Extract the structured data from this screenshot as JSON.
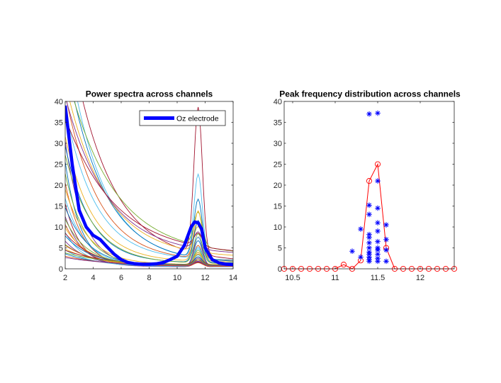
{
  "chart_data": [
    {
      "type": "line",
      "title": "Power spectra across channels",
      "xlabel": "",
      "ylabel": "",
      "xlim": [
        2,
        14
      ],
      "ylim": [
        0,
        40
      ],
      "xticks": [
        2,
        4,
        6,
        8,
        10,
        12,
        14
      ],
      "yticks": [
        0,
        5,
        10,
        15,
        20,
        25,
        30,
        35,
        40
      ],
      "legend": {
        "position": "top-right",
        "entries": [
          "Oz electrode"
        ]
      },
      "grid": false,
      "highlight_series": {
        "name": "Oz electrode",
        "color": "#0000ff",
        "x": [
          2,
          2.5,
          3,
          3.5,
          4,
          4.5,
          5,
          5.5,
          6,
          6.5,
          7,
          7.5,
          8,
          8.5,
          9,
          9.5,
          10,
          10.5,
          11,
          11.25,
          11.5,
          11.75,
          12,
          12.5,
          13,
          13.5,
          14
        ],
        "y": [
          39,
          25,
          14,
          10,
          8,
          7,
          5.2,
          3.5,
          2.2,
          1.5,
          1.2,
          1.1,
          1.1,
          1.2,
          1.5,
          2.2,
          3,
          5.5,
          10,
          11.2,
          11,
          9.5,
          5,
          2.2,
          1.4,
          1.1,
          1
        ]
      },
      "background_series": [
        {
          "color": "#7e2f8e",
          "a": 30,
          "k": 0.75,
          "base": 0.5,
          "pk": 1.2
        },
        {
          "color": "#0072bd",
          "a": 25,
          "k": 0.9,
          "base": 0.6,
          "pk": 1.0
        },
        {
          "color": "#77ac30",
          "a": 22,
          "k": 0.7,
          "base": 0.8,
          "pk": 2.0
        },
        {
          "color": "#d95319",
          "a": 20,
          "k": 0.8,
          "base": 0.5,
          "pk": 3.0
        },
        {
          "color": "#edb120",
          "a": 18,
          "k": 0.6,
          "base": 1.0,
          "pk": 2.5
        },
        {
          "color": "#4dbeee",
          "a": 16,
          "k": 0.7,
          "base": 0.8,
          "pk": 4.0
        },
        {
          "color": "#a2142f",
          "a": 15,
          "k": 0.9,
          "base": 0.6,
          "pk": 1.5
        },
        {
          "color": "#0072bd",
          "a": 14,
          "k": 0.6,
          "base": 0.7,
          "pk": 6.0
        },
        {
          "color": "#7e2f8e",
          "a": 12,
          "k": 0.8,
          "base": 0.5,
          "pk": 2.0
        },
        {
          "color": "#77ac30",
          "a": 11,
          "k": 0.65,
          "base": 0.9,
          "pk": 3.5
        },
        {
          "color": "#d95319",
          "a": 10,
          "k": 0.7,
          "base": 0.6,
          "pk": 5.0
        },
        {
          "color": "#edb120",
          "a": 9,
          "k": 0.6,
          "base": 0.8,
          "pk": 2.5
        },
        {
          "color": "#4dbeee",
          "a": 8,
          "k": 0.75,
          "base": 0.7,
          "pk": 4.5
        },
        {
          "color": "#a2142f",
          "a": 8,
          "k": 0.5,
          "base": 0.5,
          "pk": 1.0
        },
        {
          "color": "#0072bd",
          "a": 7,
          "k": 0.55,
          "base": 0.9,
          "pk": 3.0
        },
        {
          "color": "#7e2f8e",
          "a": 6,
          "k": 0.6,
          "base": 0.6,
          "pk": 7.0
        },
        {
          "color": "#77ac30",
          "a": 5,
          "k": 0.5,
          "base": 0.8,
          "pk": 2.0
        },
        {
          "color": "#d95319",
          "a": 5,
          "k": 0.45,
          "base": 0.6,
          "pk": 1.5
        },
        {
          "color": "#edb120",
          "a": 4,
          "k": 0.4,
          "base": 0.7,
          "pk": 3.2
        },
        {
          "color": "#4dbeee",
          "a": 4,
          "k": 0.5,
          "base": 0.5,
          "pk": 2.8
        },
        {
          "color": "#a2142f",
          "a": 3.5,
          "k": 0.35,
          "base": 0.9,
          "pk": 1.8
        },
        {
          "color": "#0072bd",
          "a": 3,
          "k": 0.4,
          "base": 0.6,
          "pk": 2.2
        },
        {
          "color": "#77ac30",
          "a": 3,
          "k": 0.3,
          "base": 0.8,
          "pk": 1.2
        },
        {
          "color": "#d95319",
          "a": 2.5,
          "k": 0.3,
          "base": 0.5,
          "pk": 0.8
        },
        {
          "color": "#7e2f8e",
          "a": 2,
          "k": 0.3,
          "base": 0.7,
          "pk": 1.0
        },
        {
          "color": "#a2142f",
          "a": 60,
          "k": 0.35,
          "base": 1.5,
          "pk": 35
        },
        {
          "color": "#4dbeee",
          "a": 55,
          "k": 0.4,
          "base": 1.4,
          "pk": 20
        },
        {
          "color": "#0072bd",
          "a": 50,
          "k": 0.38,
          "base": 1.3,
          "pk": 14
        },
        {
          "color": "#77ac30",
          "a": 45,
          "k": 0.3,
          "base": 3.0,
          "pk": 8
        },
        {
          "color": "#edb120",
          "a": 42,
          "k": 0.35,
          "base": 2.6,
          "pk": 6
        },
        {
          "color": "#d95319",
          "a": 40,
          "k": 0.42,
          "base": 1.8,
          "pk": 9
        },
        {
          "color": "#7e2f8e",
          "a": 38,
          "k": 0.33,
          "base": 3.2,
          "pk": 4
        },
        {
          "color": "#4dbeee",
          "a": 36,
          "k": 0.45,
          "base": 2.0,
          "pk": 5
        },
        {
          "color": "#a2142f",
          "a": 33,
          "k": 0.28,
          "base": 3.2,
          "pk": 3
        },
        {
          "color": "#edb120",
          "a": 30,
          "k": 0.5,
          "base": 1.6,
          "pk": 12
        },
        {
          "color": "#0072bd",
          "a": 28,
          "k": 0.55,
          "base": 1.4,
          "pk": 10
        },
        {
          "color": "#77ac30",
          "a": 26,
          "k": 0.5,
          "base": 1.2,
          "pk": 7
        }
      ]
    },
    {
      "type": "scatter",
      "title": "Peak frequency distribution across channels",
      "xlabel": "",
      "ylabel": "",
      "xlim": [
        10.4,
        12.4
      ],
      "ylim": [
        0,
        40
      ],
      "xticks": [
        10.5,
        11,
        11.5,
        12
      ],
      "yticks": [
        0,
        5,
        10,
        15,
        20,
        25,
        30,
        35,
        40
      ],
      "grid": false,
      "scatter_points": {
        "color": "#0000ff",
        "marker": "asterisk",
        "points": [
          [
            11.2,
            4.2
          ],
          [
            11.3,
            9.5
          ],
          [
            11.3,
            2.8
          ],
          [
            11.4,
            37
          ],
          [
            11.4,
            15.2
          ],
          [
            11.4,
            13
          ],
          [
            11.4,
            8.2
          ],
          [
            11.4,
            7.5
          ],
          [
            11.4,
            6.2
          ],
          [
            11.4,
            5
          ],
          [
            11.4,
            4
          ],
          [
            11.4,
            3.5
          ],
          [
            11.4,
            2.8
          ],
          [
            11.4,
            2.2
          ],
          [
            11.4,
            1.8
          ],
          [
            11.5,
            37.2
          ],
          [
            11.5,
            21
          ],
          [
            11.5,
            14.5
          ],
          [
            11.5,
            11
          ],
          [
            11.5,
            9
          ],
          [
            11.5,
            6.5
          ],
          [
            11.5,
            5
          ],
          [
            11.5,
            4.5
          ],
          [
            11.5,
            3.5
          ],
          [
            11.5,
            2.5
          ],
          [
            11.5,
            1.8
          ],
          [
            11.6,
            10.5
          ],
          [
            11.6,
            7
          ],
          [
            11.6,
            4.5
          ],
          [
            11.6,
            1.8
          ]
        ]
      },
      "distribution_series": {
        "color": "#ff0000",
        "marker": "circle",
        "x": [
          10.4,
          10.5,
          10.6,
          10.7,
          10.8,
          10.9,
          11.0,
          11.1,
          11.2,
          11.3,
          11.4,
          11.5,
          11.6,
          11.7,
          11.8,
          11.9,
          12.0,
          12.1,
          12.2,
          12.3,
          12.4
        ],
        "y": [
          0,
          0,
          0,
          0,
          0,
          0,
          0,
          1,
          0,
          2,
          21,
          25,
          5,
          0,
          0,
          0,
          0,
          0,
          0,
          0,
          0
        ]
      }
    }
  ]
}
